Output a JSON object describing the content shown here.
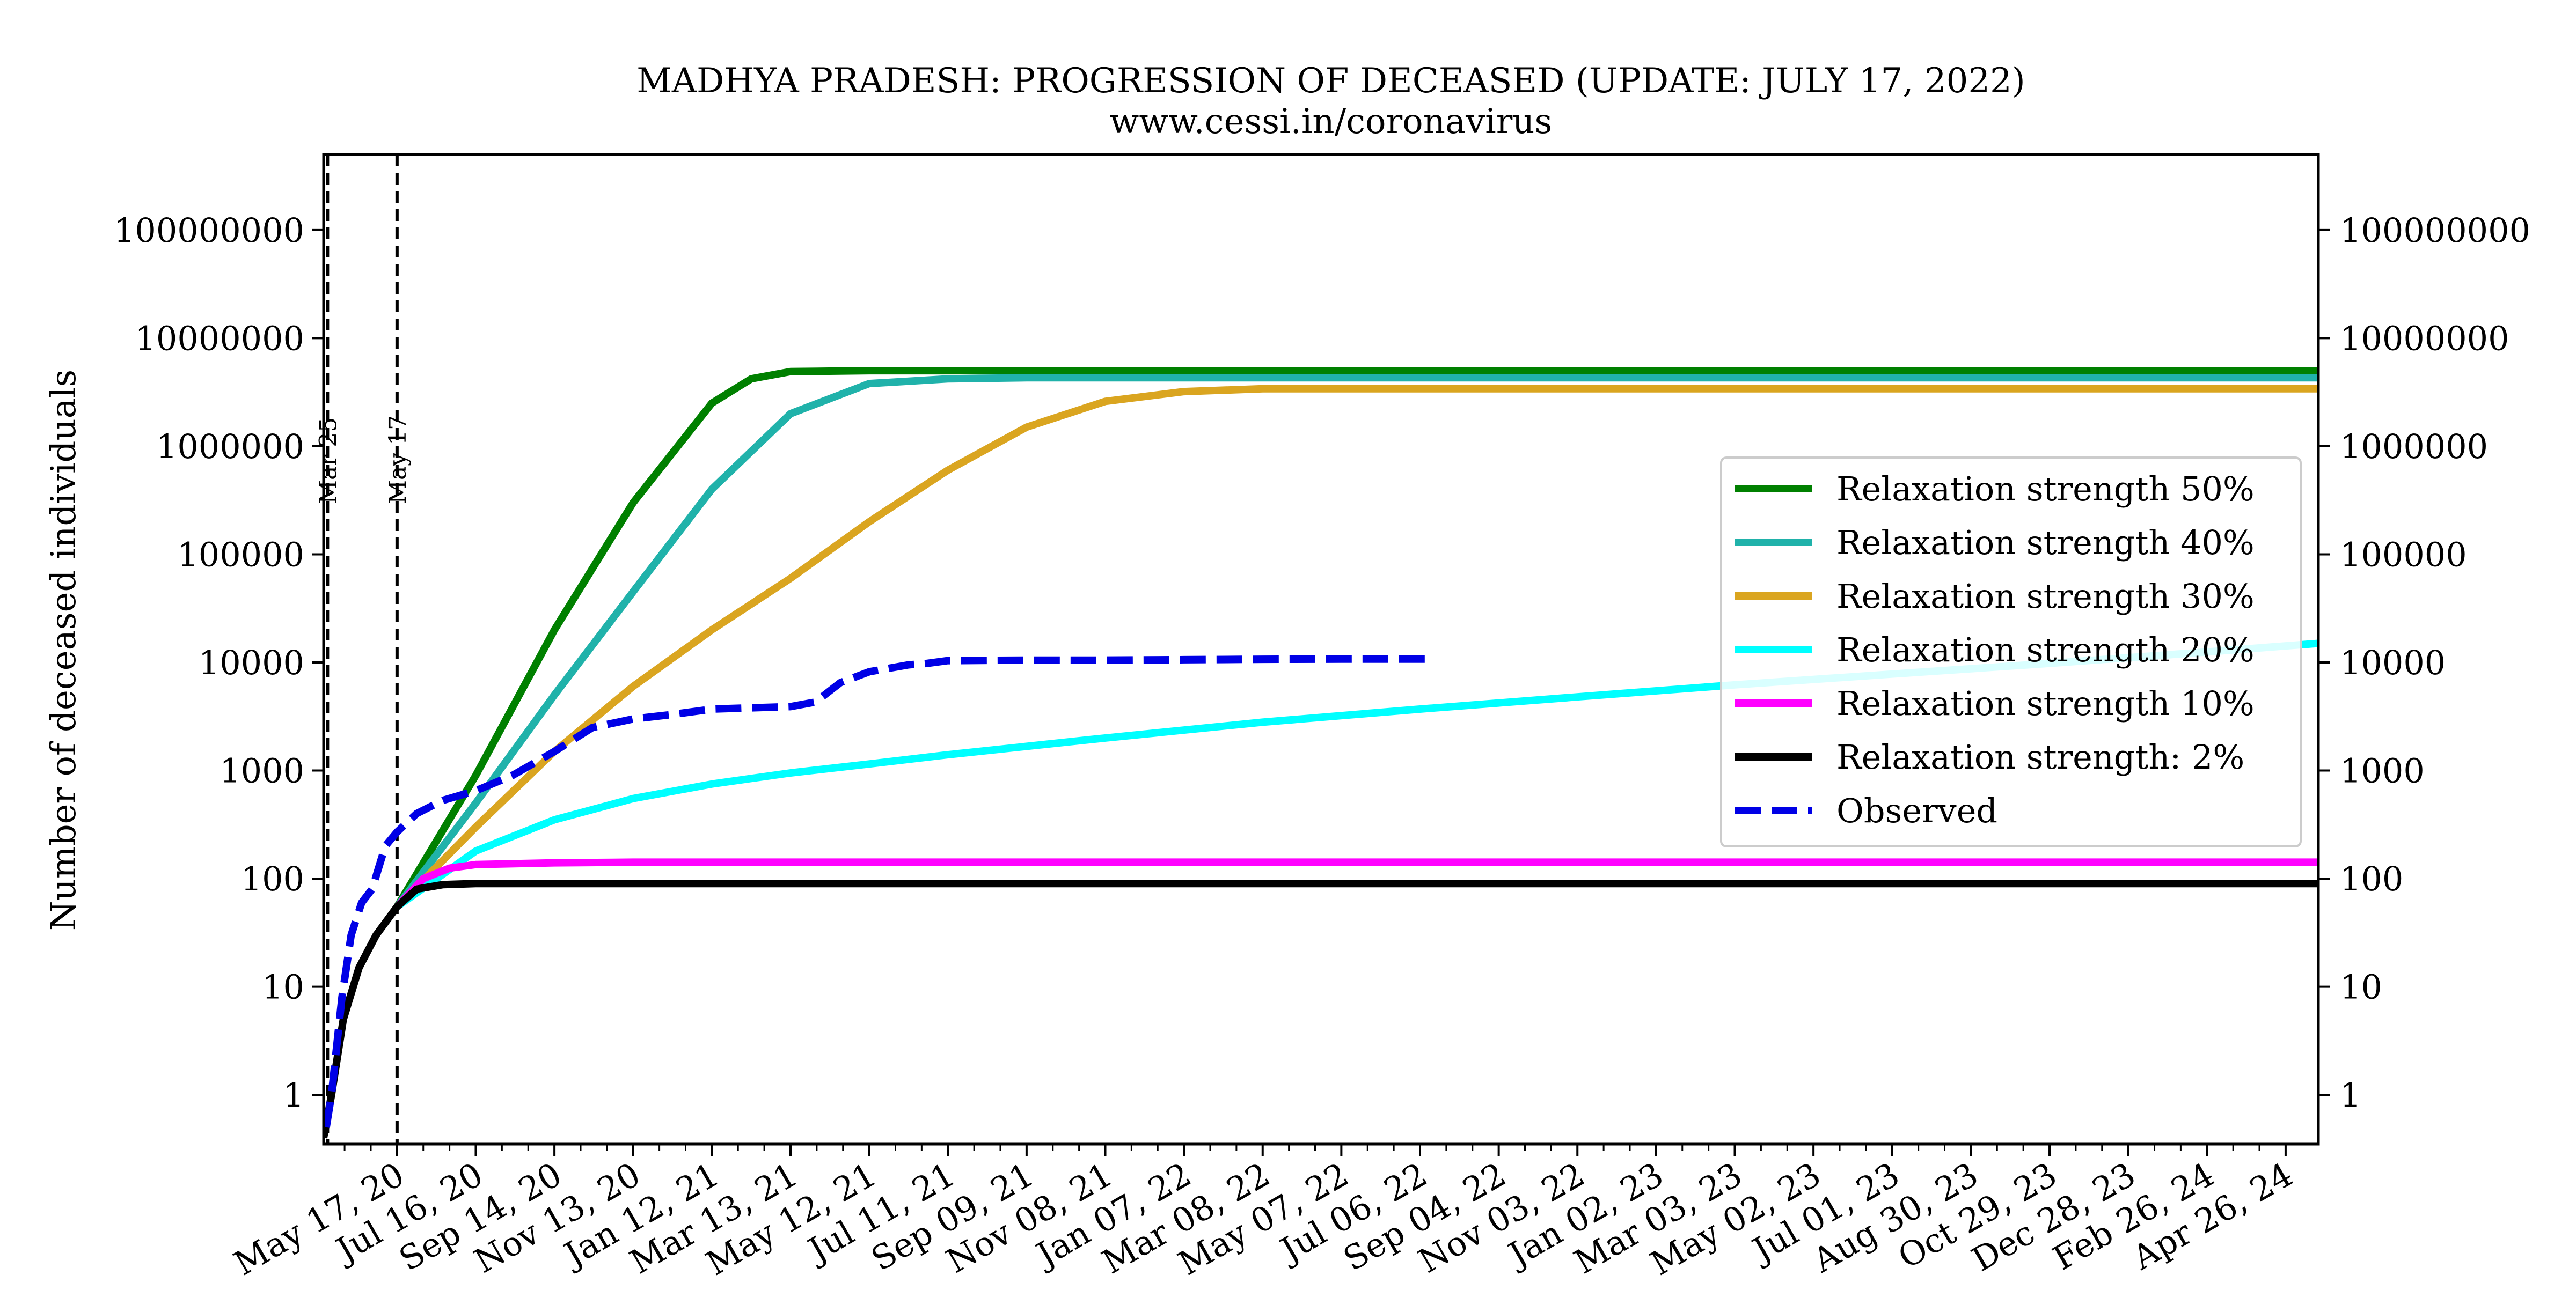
{
  "chart_data": {
    "type": "line",
    "title": "MADHYA PRADESH: PROGRESSION OF DECEASED (UPDATE: JULY 17, 2022)",
    "subtitle": "www.cessi.in/coronavirus",
    "ylabel": "Number of deceased individuals",
    "xlabel": "",
    "yscale": "log",
    "ylim": [
      0.35,
      500000000
    ],
    "xlim": [
      "2020-03-22",
      "2024-05-21"
    ],
    "yticks": [
      1,
      10,
      100,
      1000,
      10000,
      100000,
      1000000,
      10000000,
      100000000
    ],
    "ytick_labels": [
      "1",
      "10",
      "100",
      "1000",
      "10000",
      "100000",
      "1000000",
      "10000000",
      "100000000"
    ],
    "xticks": [
      "2020-05-17",
      "2020-07-16",
      "2020-09-14",
      "2020-11-13",
      "2021-01-12",
      "2021-03-13",
      "2021-05-12",
      "2021-07-11",
      "2021-09-09",
      "2021-11-08",
      "2022-01-07",
      "2022-03-08",
      "2022-05-07",
      "2022-07-06",
      "2022-09-04",
      "2022-11-03",
      "2023-01-02",
      "2023-03-03",
      "2023-05-02",
      "2023-07-01",
      "2023-08-30",
      "2023-10-29",
      "2023-12-28",
      "2024-02-26",
      "2024-04-26"
    ],
    "xtick_labels": [
      "May 17, 20",
      "Jul 16, 20",
      "Sep 14, 20",
      "Nov 13, 20",
      "Jan 12, 21",
      "Mar 13, 21",
      "May 12, 21",
      "Jul 11, 21",
      "Sep 09, 21",
      "Nov 08, 21",
      "Jan 07, 22",
      "Mar 08, 22",
      "May 07, 22",
      "Jul 06, 22",
      "Sep 04, 22",
      "Nov 03, 22",
      "Jan 02, 23",
      "Mar 03, 23",
      "May 02, 23",
      "Jul 01, 23",
      "Aug 30, 23",
      "Oct 29, 23",
      "Dec 28, 23",
      "Feb 26, 24",
      "Apr 26, 24"
    ],
    "vlines": [
      {
        "date": "2020-03-25",
        "label": "Mar 25"
      },
      {
        "date": "2020-05-17",
        "label": "May 17"
      }
    ],
    "grid": false,
    "legend_position": "center-right",
    "series": [
      {
        "name": "Relaxation strength 50%",
        "color": "#008000",
        "style": "solid",
        "points": [
          [
            "2020-05-17",
            55
          ],
          [
            "2020-07-16",
            900
          ],
          [
            "2020-09-14",
            20000
          ],
          [
            "2020-11-13",
            300000
          ],
          [
            "2021-01-12",
            2500000
          ],
          [
            "2021-02-11",
            4200000
          ],
          [
            "2021-03-13",
            4900000
          ],
          [
            "2021-05-12",
            5000000
          ],
          [
            "2024-05-21",
            5000000
          ]
        ]
      },
      {
        "name": "Relaxation strength 40%",
        "color": "#20B2AA",
        "style": "solid",
        "points": [
          [
            "2020-05-17",
            55
          ],
          [
            "2020-07-16",
            500
          ],
          [
            "2020-09-14",
            5000
          ],
          [
            "2020-11-13",
            45000
          ],
          [
            "2021-01-12",
            400000
          ],
          [
            "2021-03-13",
            2000000
          ],
          [
            "2021-05-12",
            3800000
          ],
          [
            "2021-07-11",
            4200000
          ],
          [
            "2021-09-09",
            4300000
          ],
          [
            "2024-05-21",
            4300000
          ]
        ]
      },
      {
        "name": "Relaxation strength 30%",
        "color": "#DAA520",
        "style": "solid",
        "points": [
          [
            "2020-05-17",
            55
          ],
          [
            "2020-07-16",
            300
          ],
          [
            "2020-09-14",
            1500
          ],
          [
            "2020-11-13",
            6000
          ],
          [
            "2021-01-12",
            20000
          ],
          [
            "2021-03-13",
            60000
          ],
          [
            "2021-05-12",
            200000
          ],
          [
            "2021-07-11",
            600000
          ],
          [
            "2021-09-09",
            1500000
          ],
          [
            "2021-11-08",
            2600000
          ],
          [
            "2022-01-07",
            3200000
          ],
          [
            "2022-03-08",
            3400000
          ],
          [
            "2024-05-21",
            3400000
          ]
        ]
      },
      {
        "name": "Relaxation strength 20%",
        "color": "#00FFFF",
        "style": "solid",
        "points": [
          [
            "2020-05-17",
            55
          ],
          [
            "2020-07-16",
            180
          ],
          [
            "2020-09-14",
            350
          ],
          [
            "2020-11-13",
            550
          ],
          [
            "2021-01-12",
            750
          ],
          [
            "2021-03-13",
            950
          ],
          [
            "2021-05-12",
            1150
          ],
          [
            "2021-07-11",
            1400
          ],
          [
            "2021-11-08",
            2000
          ],
          [
            "2022-03-08",
            2800
          ],
          [
            "2022-07-06",
            3700
          ],
          [
            "2022-11-03",
            4800
          ],
          [
            "2023-03-03",
            6200
          ],
          [
            "2023-07-01",
            7800
          ],
          [
            "2023-10-29",
            9800
          ],
          [
            "2024-02-26",
            12500
          ],
          [
            "2024-05-21",
            15000
          ]
        ]
      },
      {
        "name": "Relaxation strength 10%",
        "color": "#FF00FF",
        "style": "solid",
        "points": [
          [
            "2020-05-17",
            55
          ],
          [
            "2020-06-06",
            100
          ],
          [
            "2020-06-26",
            125
          ],
          [
            "2020-07-16",
            135
          ],
          [
            "2020-09-14",
            140
          ],
          [
            "2020-11-13",
            142
          ],
          [
            "2024-05-21",
            142
          ]
        ]
      },
      {
        "name": "Relaxation strength: 2%",
        "color": "#000000",
        "style": "solid",
        "points": [
          [
            "2020-03-22",
            0.4
          ],
          [
            "2020-03-28",
            1
          ],
          [
            "2020-04-06",
            5
          ],
          [
            "2020-04-18",
            15
          ],
          [
            "2020-05-01",
            30
          ],
          [
            "2020-05-17",
            55
          ],
          [
            "2020-06-01",
            80
          ],
          [
            "2020-06-21",
            88
          ],
          [
            "2020-07-16",
            90
          ],
          [
            "2024-05-21",
            90
          ]
        ]
      },
      {
        "name": "Observed",
        "color": "#0000E6",
        "style": "dashed",
        "points": [
          [
            "2020-03-24",
            0.5
          ],
          [
            "2020-03-28",
            1
          ],
          [
            "2020-04-05",
            8
          ],
          [
            "2020-04-12",
            30
          ],
          [
            "2020-04-20",
            60
          ],
          [
            "2020-04-28",
            80
          ],
          [
            "2020-05-08",
            200
          ],
          [
            "2020-05-17",
            270
          ],
          [
            "2020-06-01",
            400
          ],
          [
            "2020-06-21",
            530
          ],
          [
            "2020-07-16",
            650
          ],
          [
            "2020-08-13",
            900
          ],
          [
            "2020-09-14",
            1500
          ],
          [
            "2020-10-13",
            2500
          ],
          [
            "2020-11-13",
            3000
          ],
          [
            "2020-12-13",
            3300
          ],
          [
            "2021-01-12",
            3700
          ],
          [
            "2021-02-11",
            3800
          ],
          [
            "2021-03-13",
            3900
          ],
          [
            "2021-04-01",
            4300
          ],
          [
            "2021-04-20",
            6500
          ],
          [
            "2021-05-12",
            8200
          ],
          [
            "2021-06-11",
            9500
          ],
          [
            "2021-06-25",
            9800
          ],
          [
            "2021-07-11",
            10400
          ],
          [
            "2021-09-09",
            10500
          ],
          [
            "2021-11-08",
            10500
          ],
          [
            "2022-01-07",
            10600
          ],
          [
            "2022-03-08",
            10700
          ],
          [
            "2022-05-07",
            10730
          ],
          [
            "2022-07-17",
            10750
          ]
        ]
      }
    ]
  }
}
